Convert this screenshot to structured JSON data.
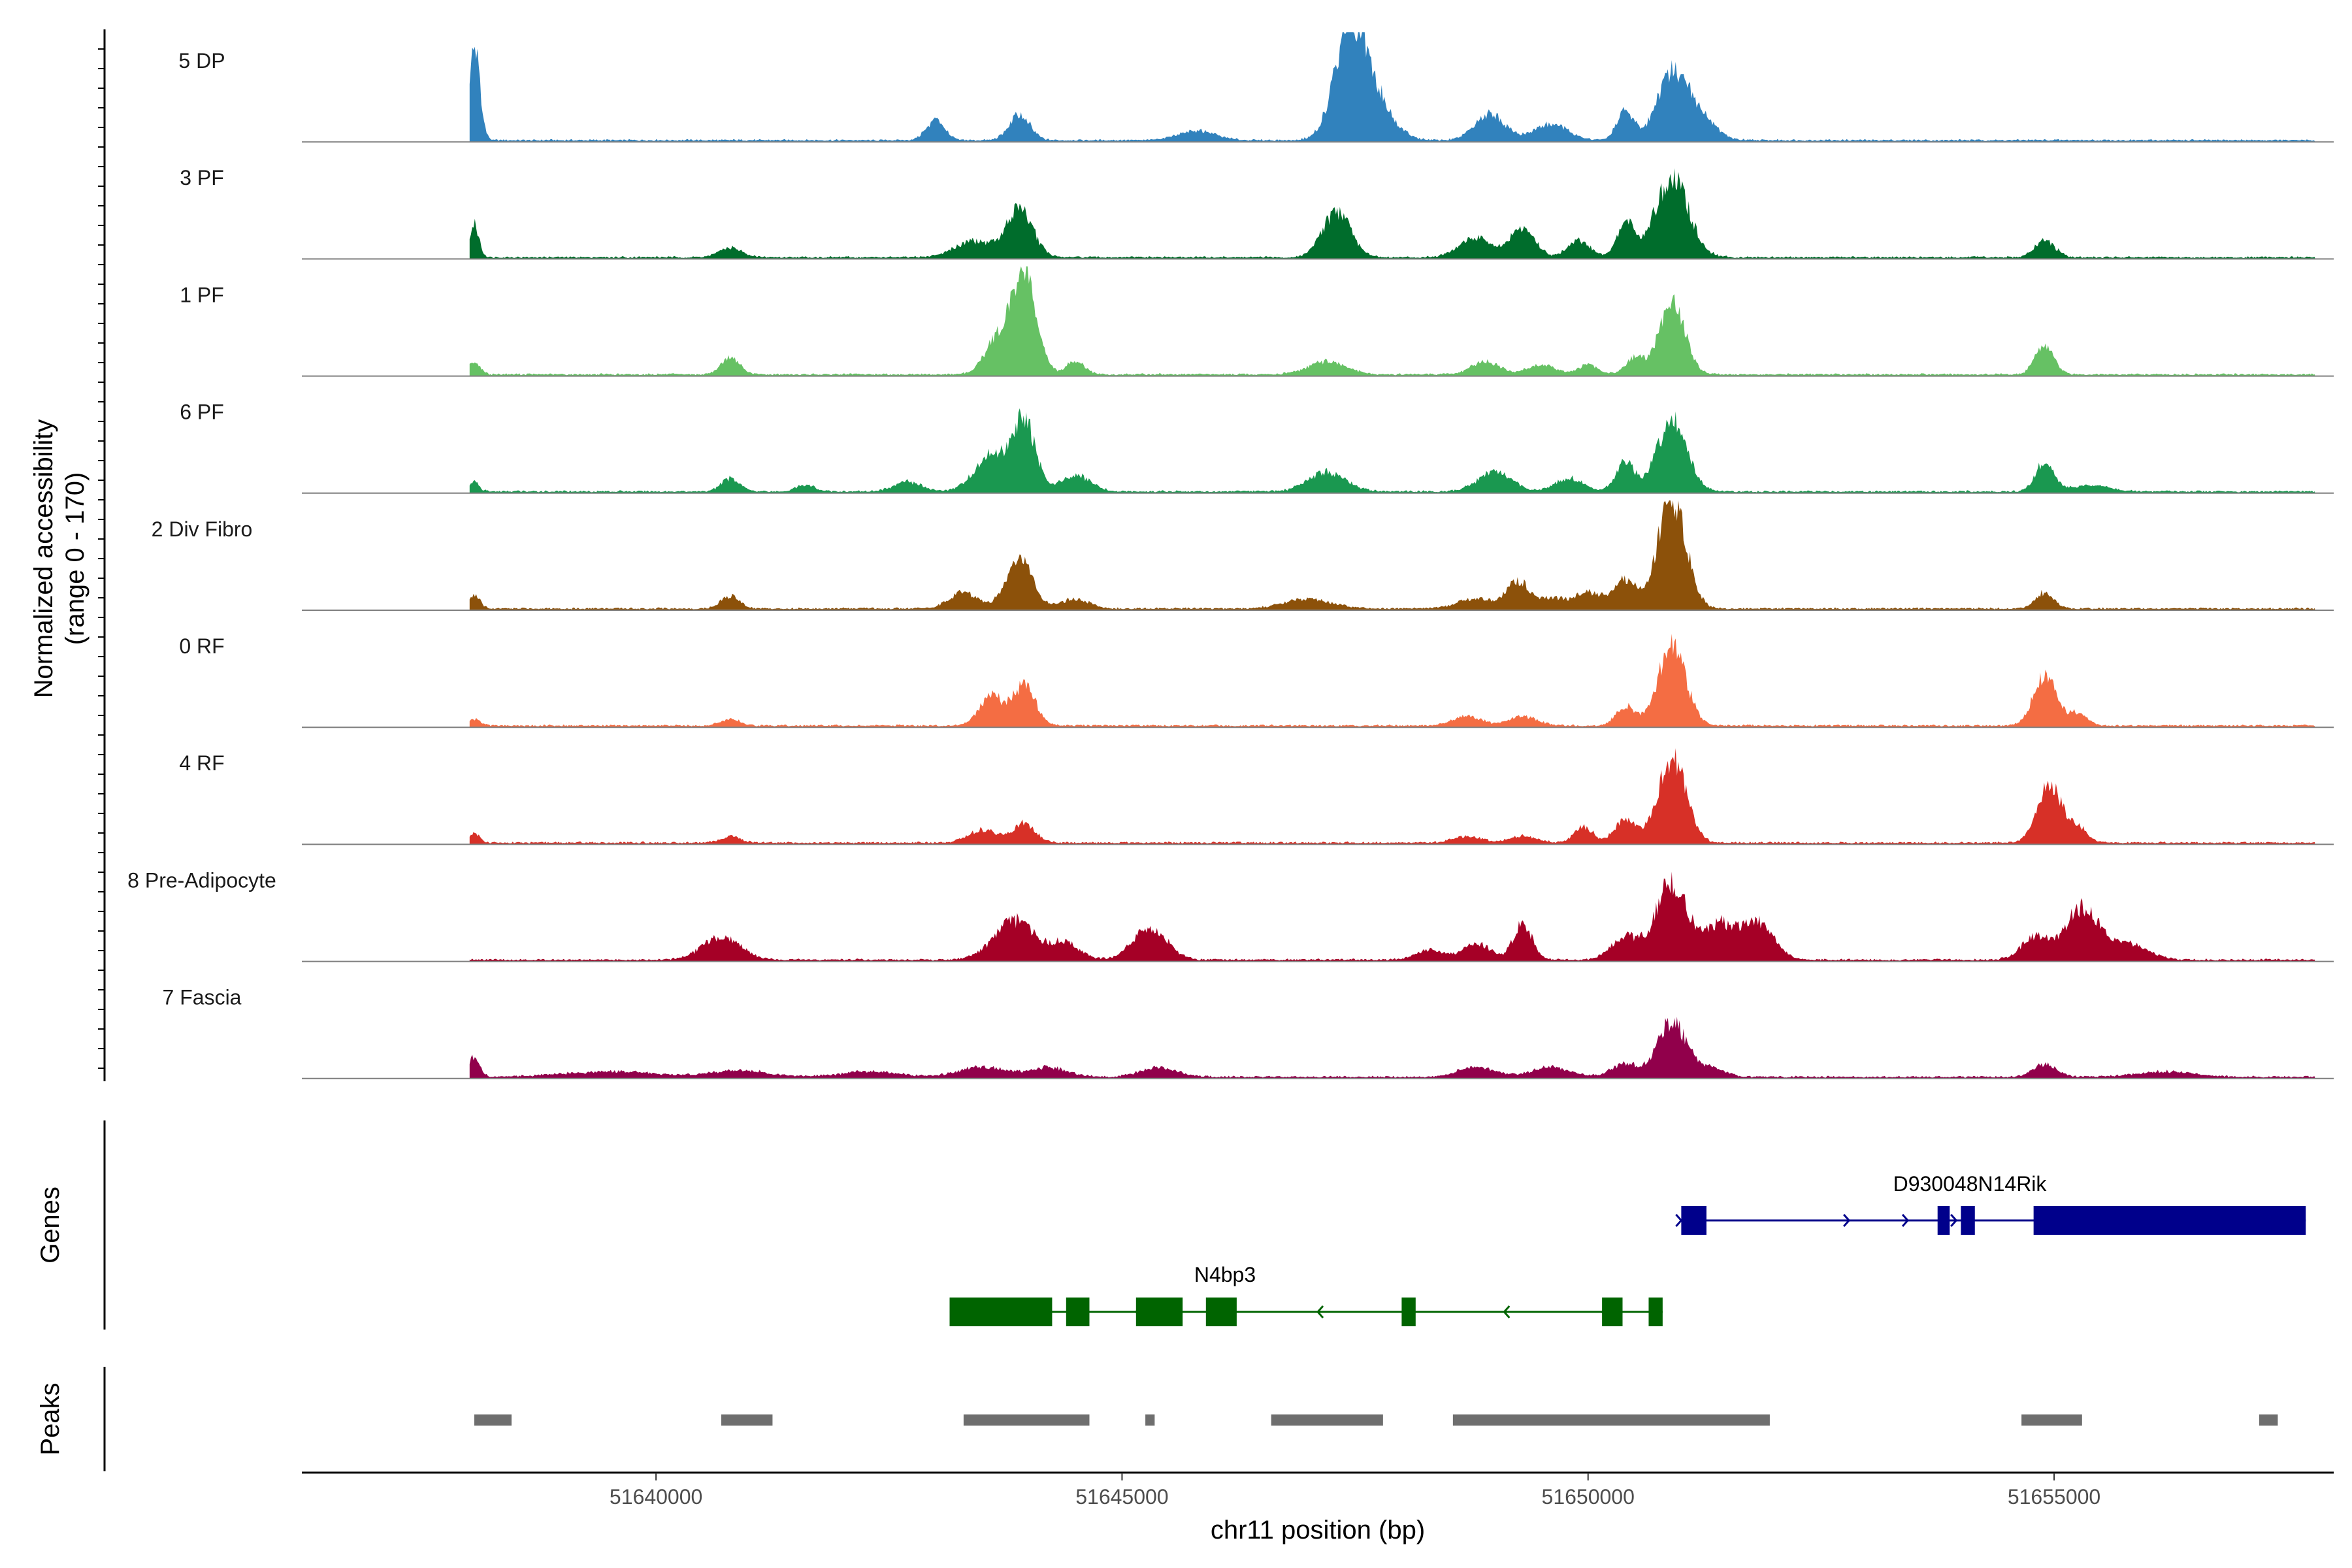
{
  "chart_data": {
    "type": "area",
    "chromosome": "chr11",
    "x_range": [
      51636200,
      51658000
    ],
    "y_range": [
      0,
      170
    ],
    "ylabel": "Normalized accessibility",
    "ylabel_range": "(range 0 - 170)",
    "xlabel": "chr11 position (bp)",
    "x_ticks": [
      51640000,
      51645000,
      51650000,
      51655000
    ],
    "x_tick_labels": [
      "51640000",
      "51645000",
      "51650000",
      "51655000"
    ],
    "track_titles": {
      "genes": "Genes",
      "peaks": "Peaks"
    },
    "tracks": [
      {
        "name": "5 DP",
        "color": "#3182bd",
        "peaks": [
          [
            51638050,
            140,
            60
          ],
          [
            51643000,
            30,
            100
          ],
          [
            51643900,
            40,
            110
          ],
          [
            51645800,
            15,
            200
          ],
          [
            51647450,
            160,
            170
          ],
          [
            51647700,
            55,
            200
          ],
          [
            51648950,
            40,
            160
          ],
          [
            51649600,
            25,
            180
          ],
          [
            51650400,
            45,
            90
          ],
          [
            51650900,
            100,
            160
          ],
          [
            51651200,
            35,
            160
          ]
        ]
      },
      {
        "name": "3 PF",
        "color": "#006d2c",
        "peaks": [
          [
            51638050,
            50,
            50
          ],
          [
            51640800,
            15,
            120
          ],
          [
            51643400,
            25,
            200
          ],
          [
            51643900,
            75,
            140
          ],
          [
            51647300,
            70,
            150
          ],
          [
            51648800,
            30,
            180
          ],
          [
            51649300,
            45,
            130
          ],
          [
            51649900,
            25,
            120
          ],
          [
            51650400,
            55,
            90
          ],
          [
            51650900,
            120,
            180
          ],
          [
            51654900,
            25,
            110
          ]
        ]
      },
      {
        "name": "1 PF",
        "color": "#66c164",
        "peaks": [
          [
            51638050,
            20,
            60
          ],
          [
            51640800,
            25,
            100
          ],
          [
            51643650,
            50,
            130
          ],
          [
            51643950,
            160,
            130
          ],
          [
            51644500,
            20,
            100
          ],
          [
            51647200,
            20,
            200
          ],
          [
            51648900,
            20,
            150
          ],
          [
            51649500,
            15,
            150
          ],
          [
            51650000,
            15,
            100
          ],
          [
            51650500,
            25,
            100
          ],
          [
            51650900,
            110,
            140
          ],
          [
            51654900,
            45,
            100
          ]
        ]
      },
      {
        "name": "6 PF",
        "color": "#1a9850",
        "peaks": [
          [
            51638050,
            15,
            50
          ],
          [
            51640800,
            20,
            100
          ],
          [
            51641600,
            10,
            100
          ],
          [
            51642700,
            15,
            150
          ],
          [
            51643600,
            55,
            180
          ],
          [
            51643950,
            110,
            120
          ],
          [
            51644500,
            25,
            160
          ],
          [
            51647200,
            30,
            200
          ],
          [
            51649000,
            30,
            180
          ],
          [
            51649800,
            20,
            150
          ],
          [
            51650400,
            45,
            100
          ],
          [
            51650900,
            110,
            160
          ],
          [
            51654900,
            45,
            100
          ],
          [
            51655400,
            10,
            200
          ]
        ]
      },
      {
        "name": "2 Div Fibro",
        "color": "#8c510a",
        "peaks": [
          [
            51638050,
            20,
            60
          ],
          [
            51640800,
            20,
            100
          ],
          [
            51643300,
            25,
            150
          ],
          [
            51643900,
            75,
            140
          ],
          [
            51644500,
            15,
            150
          ],
          [
            51647000,
            15,
            250
          ],
          [
            51648800,
            15,
            200
          ],
          [
            51649250,
            40,
            120
          ],
          [
            51649600,
            15,
            150
          ],
          [
            51650000,
            25,
            150
          ],
          [
            51650400,
            45,
            120
          ],
          [
            51650900,
            170,
            150
          ],
          [
            51654900,
            25,
            100
          ]
        ]
      },
      {
        "name": "0 RF",
        "color": "#f46d43",
        "peaks": [
          [
            51638050,
            10,
            60
          ],
          [
            51640800,
            10,
            100
          ],
          [
            51643600,
            45,
            130
          ],
          [
            51643950,
            60,
            120
          ],
          [
            51648700,
            15,
            150
          ],
          [
            51649300,
            15,
            150
          ],
          [
            51650400,
            30,
            100
          ],
          [
            51650900,
            120,
            150
          ],
          [
            51654900,
            80,
            120
          ],
          [
            51655250,
            20,
            100
          ]
        ]
      },
      {
        "name": "4 RF",
        "color": "#d73027",
        "peaks": [
          [
            51638050,
            15,
            60
          ],
          [
            51640800,
            10,
            100
          ],
          [
            51643500,
            20,
            150
          ],
          [
            51643950,
            30,
            120
          ],
          [
            51648700,
            10,
            150
          ],
          [
            51649300,
            10,
            150
          ],
          [
            51649950,
            25,
            100
          ],
          [
            51650400,
            35,
            120
          ],
          [
            51650900,
            130,
            150
          ],
          [
            51654950,
            90,
            130
          ],
          [
            51655250,
            25,
            100
          ]
        ]
      },
      {
        "name": "8 Pre-Adipocyte",
        "color": "#a50026",
        "peaks": [
          [
            51640700,
            35,
            200
          ],
          [
            51643850,
            60,
            220
          ],
          [
            51644400,
            25,
            150
          ],
          [
            51645300,
            50,
            180
          ],
          [
            51648300,
            15,
            150
          ],
          [
            51648800,
            25,
            150
          ],
          [
            51649300,
            55,
            100
          ],
          [
            51650400,
            35,
            150
          ],
          [
            51650900,
            120,
            170
          ],
          [
            51651400,
            50,
            150
          ],
          [
            51651800,
            60,
            180
          ],
          [
            51654800,
            35,
            150
          ],
          [
            51655300,
            80,
            180
          ],
          [
            51655800,
            25,
            200
          ]
        ]
      },
      {
        "name": "7 Fascia",
        "color": "#91004b",
        "peaks": [
          [
            51638050,
            30,
            60
          ],
          [
            51639500,
            8,
            500
          ],
          [
            51640900,
            10,
            300
          ],
          [
            51642300,
            8,
            300
          ],
          [
            51643500,
            15,
            250
          ],
          [
            51644200,
            15,
            200
          ],
          [
            51645400,
            15,
            200
          ],
          [
            51648800,
            15,
            200
          ],
          [
            51649600,
            15,
            200
          ],
          [
            51650400,
            20,
            150
          ],
          [
            51650900,
            85,
            150
          ],
          [
            51651300,
            15,
            150
          ],
          [
            51654900,
            20,
            120
          ],
          [
            51656200,
            8,
            300
          ]
        ]
      }
    ],
    "genes": [
      {
        "name": "D930048N14Rik",
        "color": "#00008b",
        "strand": "+",
        "start": 51651000,
        "end": 51657700,
        "exons": [
          [
            51651000,
            51651270
          ],
          [
            51653750,
            51653880
          ],
          [
            51654000,
            51654150
          ],
          [
            51654780,
            51657700
          ]
        ],
        "arrows": [
          51651000,
          51652800,
          51653430,
          51653950
        ]
      },
      {
        "name": "N4bp3",
        "color": "#006400",
        "strand": "-",
        "start": 51643150,
        "end": 51650800,
        "exons": [
          [
            51643150,
            51644250
          ],
          [
            51644400,
            51644650
          ],
          [
            51645150,
            51645650
          ],
          [
            51645900,
            51646230
          ],
          [
            51648000,
            51648150
          ],
          [
            51650150,
            51650370
          ],
          [
            51650650,
            51650800
          ]
        ],
        "arrows": [
          51645150,
          51647100,
          51649100,
          51650150
        ]
      }
    ],
    "peaks": [
      [
        51638050,
        51638450
      ],
      [
        51640700,
        51641250
      ],
      [
        51643300,
        51644650
      ],
      [
        51645250,
        51645350
      ],
      [
        51646600,
        51647800
      ],
      [
        51648550,
        51651950
      ],
      [
        51654650,
        51655300
      ],
      [
        51657200,
        51657400
      ]
    ]
  }
}
